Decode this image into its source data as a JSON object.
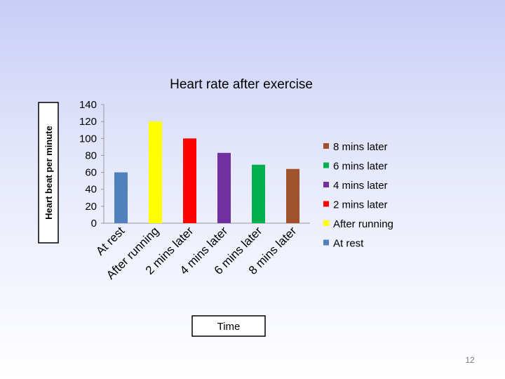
{
  "chart_data": {
    "type": "bar",
    "title": "Heart rate after exercise",
    "xlabel": "Time",
    "ylabel": "Heart beat per minute",
    "categories": [
      "At rest",
      "After running",
      "2 mins later",
      "4 mins later",
      "6 mins later",
      "8 mins later"
    ],
    "values": [
      60,
      120,
      100,
      83,
      69,
      64
    ],
    "ylim": [
      0,
      140
    ],
    "yticks": [
      0,
      20,
      40,
      60,
      80,
      100,
      120,
      140
    ],
    "colors": [
      "#4f81bd",
      "#ffff00",
      "#ff0000",
      "#7030a0",
      "#00b050",
      "#a0522d"
    ],
    "legend": {
      "position": "right",
      "order": [
        "8 mins later",
        "6 mins later",
        "4 mins later",
        "2 mins later",
        "After running",
        "At rest"
      ]
    },
    "grid": false
  },
  "slide": {
    "number": "12"
  }
}
